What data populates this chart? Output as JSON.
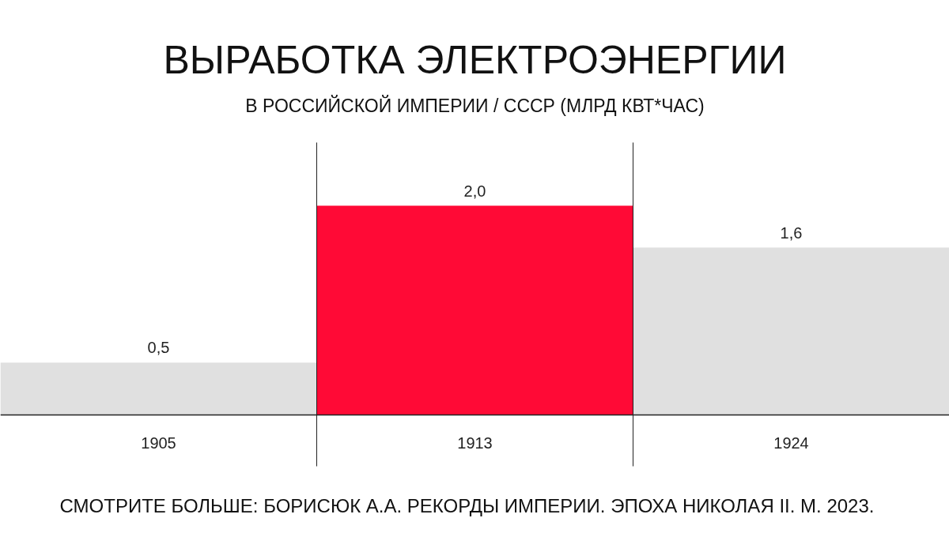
{
  "chart_data": {
    "type": "bar",
    "title": "ВЫРАБОТКА ЭЛЕКТРОЭНЕРГИИ",
    "subtitle": "В РОССИЙСКОЙ ИМПЕРИИ / СССР (МЛРД КВТ*ЧАС)",
    "categories": [
      "1905",
      "1913",
      "1924"
    ],
    "values": [
      0.5,
      2.0,
      1.6
    ],
    "colors": [
      "#e0e0e0",
      "#ff0a36",
      "#e0e0e0"
    ],
    "value_labels": [
      "0,5",
      "2,0",
      "1,6"
    ],
    "annotations": [
      "СМОТРИТЕ БОЛЬШЕ: БОРИСЮК А.А. РЕКОРДЫ ИМПЕРИИ. ЭПОХА НИКОЛАЯ II. М. 2023."
    ]
  }
}
